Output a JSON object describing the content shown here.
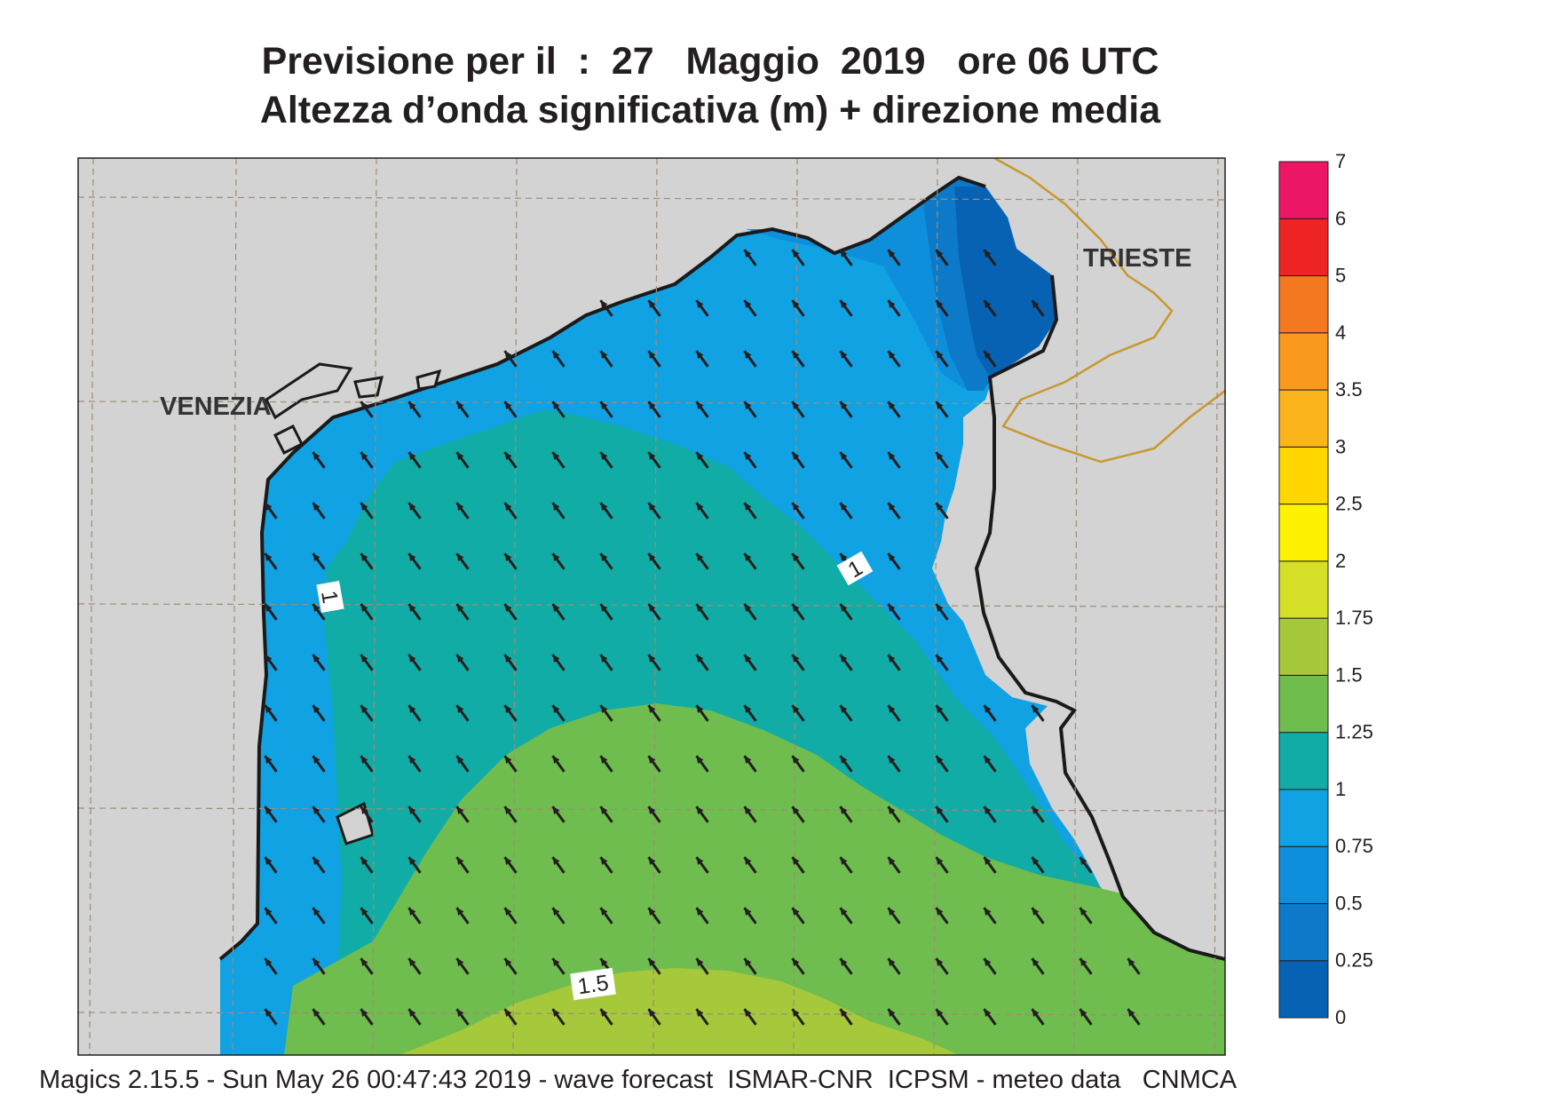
{
  "title_line1": "Previsione per il  :  27   Maggio  2019   ore 06 UTC",
  "title_line2": "Altezza d’onda significativa (m) + direzione media",
  "footer": "Magics 2.15.5 - Sun May 26 00:47:43 2019 - wave forecast  ISMAR-CNR  ICPSM - meteo data   CNMCA",
  "cities": [
    {
      "name": "VENEZIA"
    },
    {
      "name": "TRIESTE"
    }
  ],
  "contour_labels": [
    "1",
    "1",
    "1.5"
  ],
  "colors": {
    "land": "#d3d3d3",
    "coast": "#1a1a1a",
    "border": "#c8982e",
    "grid": "#a08c74",
    "arrow": "#231f20"
  },
  "colorbar": {
    "unit": "m",
    "levels": [
      {
        "label": "0",
        "value": 0
      },
      {
        "label": "0.25",
        "value": 0.25
      },
      {
        "label": "0.5",
        "value": 0.5
      },
      {
        "label": "0.75",
        "value": 0.75
      },
      {
        "label": "1",
        "value": 1
      },
      {
        "label": "1.25",
        "value": 1.25
      },
      {
        "label": "1.5",
        "value": 1.5
      },
      {
        "label": "1.75",
        "value": 1.75
      },
      {
        "label": "2",
        "value": 2
      },
      {
        "label": "2.5",
        "value": 2.5
      },
      {
        "label": "3",
        "value": 3
      },
      {
        "label": "3.5",
        "value": 3.5
      },
      {
        "label": "4",
        "value": 4
      },
      {
        "label": "5",
        "value": 5
      },
      {
        "label": "6",
        "value": 6
      },
      {
        "label": "7",
        "value": 7
      }
    ],
    "colors": [
      "#0762b4",
      "#0c7ac9",
      "#0d8fdb",
      "#11a2e4",
      "#12aca6",
      "#6fbd4f",
      "#a6c93b",
      "#d6df27",
      "#fff200",
      "#ffd600",
      "#fbb41b",
      "#f99a1c",
      "#f47820",
      "#ee2424",
      "#ed1566"
    ]
  },
  "wave_field": {
    "mean_direction": "NW",
    "height_bands_m": [
      {
        "range": [
          0,
          0.25
        ],
        "area": "Gulf of Trieste"
      },
      {
        "range": [
          0.5,
          0.75
        ],
        "area": "northern coastal strip"
      },
      {
        "range": [
          0.75,
          1
        ],
        "area": "coastal Veneto and Istria"
      },
      {
        "range": [
          1,
          1.25
        ],
        "area": "central basin"
      },
      {
        "range": [
          1.25,
          1.5
        ],
        "area": "southern basin"
      },
      {
        "range": [
          1.5,
          1.75
        ],
        "area": "southern edge"
      }
    ]
  }
}
